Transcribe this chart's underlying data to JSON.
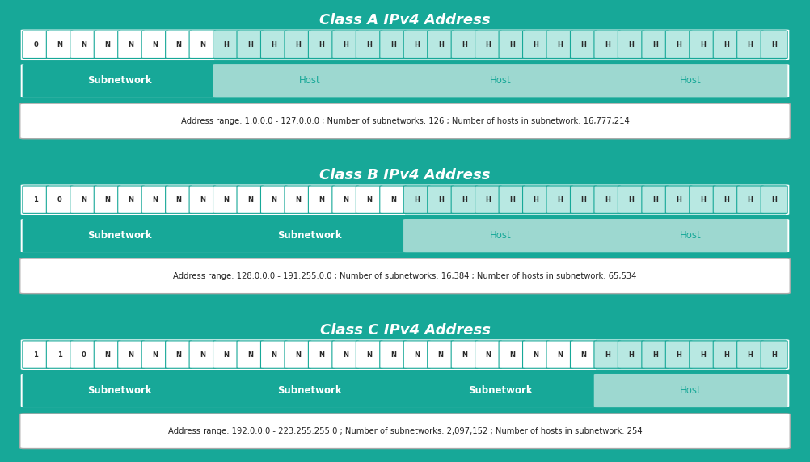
{
  "fig_bg": "#17a898",
  "panel_bg": "#17a898",
  "title_color": "#ffffff",
  "classes": [
    {
      "title": "Class A IPv4 Address",
      "bits": [
        "0",
        "N",
        "N",
        "N",
        "N",
        "N",
        "N",
        "N",
        "H",
        "H",
        "H",
        "H",
        "H",
        "H",
        "H",
        "H",
        "H",
        "H",
        "H",
        "H",
        "H",
        "H",
        "H",
        "H",
        "H",
        "H",
        "H",
        "H",
        "H",
        "H",
        "H",
        "H"
      ],
      "network_bits": 8,
      "segments": [
        {
          "label": "Subnetwork",
          "type": "network",
          "span": 8
        },
        {
          "label": "Host",
          "type": "host",
          "span": 8
        },
        {
          "label": "Host",
          "type": "host",
          "span": 8
        },
        {
          "label": "Host",
          "type": "host",
          "span": 8
        }
      ],
      "address_text": "Address range: 1.0.0.0 - 127.0.0.0 ; Number of subnetworks: 126 ; Number of hosts in subnetwork: 16,777,214"
    },
    {
      "title": "Class B IPv4 Address",
      "bits": [
        "1",
        "0",
        "N",
        "N",
        "N",
        "N",
        "N",
        "N",
        "N",
        "N",
        "N",
        "N",
        "N",
        "N",
        "N",
        "N",
        "H",
        "H",
        "H",
        "H",
        "H",
        "H",
        "H",
        "H",
        "H",
        "H",
        "H",
        "H",
        "H",
        "H",
        "H",
        "H"
      ],
      "network_bits": 16,
      "segments": [
        {
          "label": "Subnetwork",
          "type": "network",
          "span": 8
        },
        {
          "label": "Subnetwork",
          "type": "network",
          "span": 8
        },
        {
          "label": "Host",
          "type": "host",
          "span": 8
        },
        {
          "label": "Host",
          "type": "host",
          "span": 8
        }
      ],
      "address_text": "Address range: 128.0.0.0 - 191.255.0.0 ; Number of subnetworks: 16,384 ; Number of hosts in subnetwork: 65,534"
    },
    {
      "title": "Class C IPv4 Address",
      "bits": [
        "1",
        "1",
        "0",
        "N",
        "N",
        "N",
        "N",
        "N",
        "N",
        "N",
        "N",
        "N",
        "N",
        "N",
        "N",
        "N",
        "N",
        "N",
        "N",
        "N",
        "N",
        "N",
        "N",
        "N",
        "H",
        "H",
        "H",
        "H",
        "H",
        "H",
        "H",
        "H"
      ],
      "network_bits": 24,
      "segments": [
        {
          "label": "Subnetwork",
          "type": "network",
          "span": 8
        },
        {
          "label": "Subnetwork",
          "type": "network",
          "span": 8
        },
        {
          "label": "Subnetwork",
          "type": "network",
          "span": 8
        },
        {
          "label": "Host",
          "type": "host",
          "span": 8
        }
      ],
      "address_text": "Address range: 192.0.0.0 - 223.255.255.0 ; Number of subnetworks: 2,097,152 ; Number of hosts in subnetwork: 254"
    }
  ],
  "color_teal": "#17a898",
  "color_teal_dark": "#138a80",
  "color_host_bit_bg": "#b8e8e2",
  "color_segment_network": "#17a898",
  "color_segment_host": "#9dd8d0",
  "color_segment_host_light": "#b8e8e2",
  "color_white": "#ffffff",
  "color_addr_border": "#c0c0c0"
}
